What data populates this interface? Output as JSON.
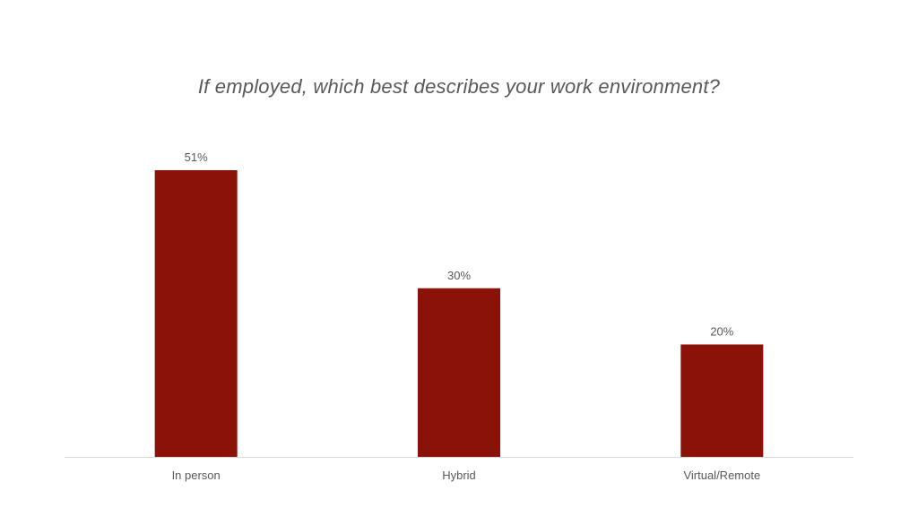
{
  "chart_data": {
    "type": "bar",
    "title": "If employed, which best describes your work environment?",
    "categories": [
      "In person",
      "Hybrid",
      "Virtual/Remote"
    ],
    "values": [
      51,
      30,
      20
    ],
    "value_labels": [
      "51%",
      "30%",
      "20%"
    ],
    "unit": "%",
    "ylim": [
      0,
      51
    ],
    "grid": false,
    "legend": "none",
    "bar_color": "#8b1209",
    "axis_color": "#d9d9d9",
    "text_color": "#595959"
  }
}
